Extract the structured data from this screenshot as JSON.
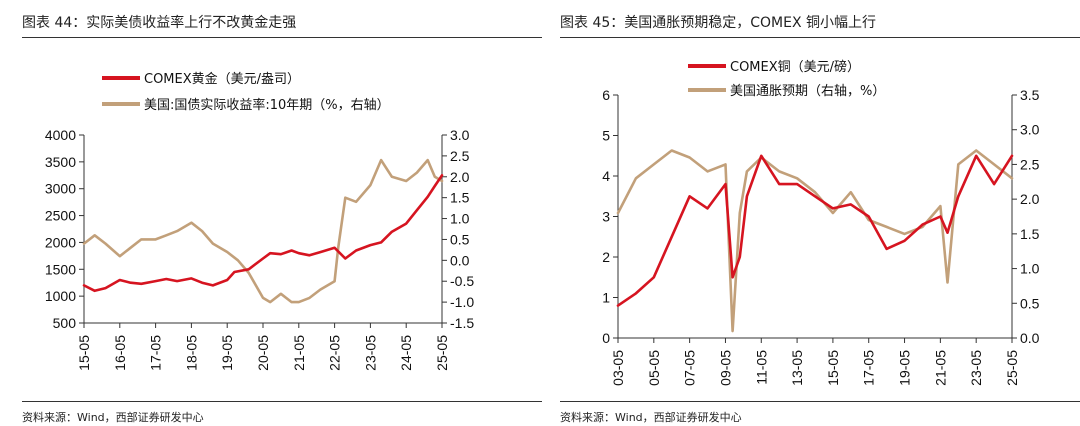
{
  "colors": {
    "gold": "#d61420",
    "yield": "#c2a07a",
    "copper": "#d61420",
    "inflation": "#c2a07a",
    "axis": "#333333"
  },
  "left": {
    "title": "图表 44：实际美债收益率上行不改黄金走强",
    "source": "资料来源：Wind，西部证券研发中心"
  },
  "right": {
    "title": "图表 45：美国通胀预期稳定，COMEX 铜小幅上行",
    "source": "资料来源：Wind，西部证券研发中心"
  },
  "chart_data": [
    {
      "type": "line",
      "title": "图表 44：实际美债收益率上行不改黄金走强",
      "x_tick_labels": [
        "15-05",
        "16-05",
        "17-05",
        "18-05",
        "19-05",
        "20-05",
        "21-05",
        "22-05",
        "23-05",
        "24-05",
        "25-05"
      ],
      "y_left": {
        "range": [
          500,
          4000
        ],
        "ticks": [
          "4000",
          "3500",
          "3000",
          "2500",
          "2000",
          "1500",
          "1000",
          "500"
        ]
      },
      "y_right": {
        "range": [
          -1.5,
          3.0
        ],
        "ticks": [
          "3.0",
          "2.5",
          "2.0",
          "1.5",
          "1.0",
          "0.5",
          "0.0",
          "-0.5",
          "-1.0",
          "-1.5"
        ]
      },
      "series": [
        {
          "name": "COMEX黄金（美元/盎司）",
          "axis": "left",
          "color": "#d61420",
          "x": [
            0,
            0.3,
            0.6,
            1.0,
            1.3,
            1.6,
            2.0,
            2.3,
            2.6,
            3.0,
            3.3,
            3.6,
            4.0,
            4.2,
            4.6,
            5.0,
            5.2,
            5.5,
            5.8,
            6.0,
            6.3,
            6.6,
            7.0,
            7.3,
            7.6,
            8.0,
            8.3,
            8.6,
            9.0,
            9.3,
            9.6,
            9.8,
            10.0
          ],
          "y": [
            1200,
            1100,
            1150,
            1300,
            1250,
            1230,
            1280,
            1320,
            1280,
            1330,
            1250,
            1200,
            1300,
            1450,
            1500,
            1700,
            1800,
            1780,
            1850,
            1800,
            1760,
            1820,
            1900,
            1700,
            1850,
            1950,
            2000,
            2200,
            2350,
            2600,
            2850,
            3050,
            3250
          ]
        },
        {
          "name": "美国:国债实际收益率:10年期（%，右轴）",
          "axis": "right",
          "color": "#c2a07a",
          "x": [
            0,
            0.3,
            0.6,
            1.0,
            1.3,
            1.6,
            2.0,
            2.3,
            2.6,
            3.0,
            3.3,
            3.6,
            4.0,
            4.3,
            4.6,
            5.0,
            5.2,
            5.5,
            5.8,
            6.0,
            6.3,
            6.6,
            7.0,
            7.1,
            7.3,
            7.6,
            8.0,
            8.3,
            8.6,
            9.0,
            9.3,
            9.6,
            9.8,
            10.0
          ],
          "y": [
            0.4,
            0.6,
            0.4,
            0.1,
            0.3,
            0.5,
            0.5,
            0.6,
            0.7,
            0.9,
            0.7,
            0.4,
            0.2,
            0.0,
            -0.3,
            -0.9,
            -1.0,
            -0.8,
            -1.0,
            -1.0,
            -0.9,
            -0.7,
            -0.5,
            0.3,
            1.5,
            1.4,
            1.8,
            2.4,
            2.0,
            1.9,
            2.1,
            2.4,
            2.0,
            1.9
          ]
        }
      ]
    },
    {
      "type": "line",
      "title": "图表 45：美国通胀预期稳定，COMEX 铜小幅上行",
      "x_tick_labels": [
        "03-05",
        "05-05",
        "07-05",
        "09-05",
        "11-05",
        "13-05",
        "15-05",
        "17-05",
        "19-05",
        "21-05",
        "23-05",
        "25-05"
      ],
      "y_left": {
        "range": [
          0,
          6
        ],
        "ticks": [
          "6",
          "5",
          "4",
          "3",
          "2",
          "1",
          "0"
        ]
      },
      "y_right": {
        "range": [
          0.0,
          3.5
        ],
        "ticks": [
          "3.5",
          "3.0",
          "2.5",
          "2.0",
          "1.5",
          "1.0",
          "0.5",
          "0.0"
        ]
      },
      "series": [
        {
          "name": "COMEX铜（美元/磅）",
          "axis": "left",
          "color": "#d61420",
          "x": [
            0,
            0.5,
            1.0,
            1.5,
            2.0,
            2.5,
            3.0,
            3.2,
            3.4,
            3.6,
            4.0,
            4.5,
            5.0,
            5.5,
            6.0,
            6.5,
            7.0,
            7.5,
            8.0,
            8.5,
            9.0,
            9.2,
            9.5,
            10.0,
            10.5,
            11.0
          ],
          "y": [
            0.8,
            1.1,
            1.5,
            2.5,
            3.5,
            3.2,
            3.8,
            1.5,
            2.0,
            3.5,
            4.5,
            3.8,
            3.8,
            3.5,
            3.2,
            3.3,
            3.0,
            2.2,
            2.4,
            2.8,
            3.0,
            2.6,
            3.5,
            4.5,
            3.8,
            4.5
          ]
        },
        {
          "name": "美国通胀预期（右轴，%）",
          "axis": "right",
          "color": "#c2a07a",
          "x": [
            0,
            0.5,
            1.0,
            1.5,
            2.0,
            2.5,
            3.0,
            3.2,
            3.4,
            3.6,
            4.0,
            4.5,
            5.0,
            5.5,
            6.0,
            6.5,
            7.0,
            7.5,
            8.0,
            8.5,
            9.0,
            9.2,
            9.5,
            10.0,
            10.5,
            11.0
          ],
          "y": [
            1.8,
            2.3,
            2.5,
            2.7,
            2.6,
            2.4,
            2.5,
            0.1,
            1.8,
            2.4,
            2.6,
            2.4,
            2.3,
            2.1,
            1.8,
            2.1,
            1.7,
            1.6,
            1.5,
            1.6,
            1.9,
            0.8,
            2.5,
            2.7,
            2.5,
            2.3
          ]
        }
      ]
    }
  ]
}
